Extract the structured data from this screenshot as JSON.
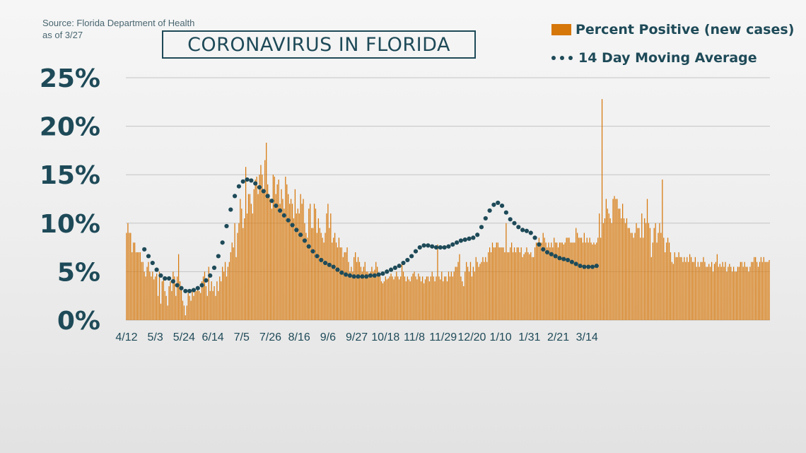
{
  "source_line1": "Source: Florida Department of Health",
  "source_line2": "as of 3/27",
  "title": "CORONAVIRUS IN FLORIDA",
  "legend": {
    "bars_label": "Percent Positive (new cases)",
    "line_label": "14 Day Moving Average"
  },
  "colors": {
    "bar": "#d6770a",
    "moving_average": "#1e4a58",
    "text": "#1e4a58",
    "grid": "#c4c4c4"
  },
  "chart_data": {
    "type": "bar",
    "title": "CORONAVIRUS IN FLORIDA",
    "xlabel": "",
    "ylabel": "",
    "ylim": [
      0,
      25
    ],
    "yticks": [
      0,
      5,
      10,
      15,
      20,
      25
    ],
    "ytick_labels": [
      "0%",
      "5%",
      "10%",
      "15%",
      "20%",
      "25%"
    ],
    "xticks": [
      "4/12",
      "5/3",
      "5/24",
      "6/14",
      "7/5",
      "7/26",
      "8/16",
      "9/6",
      "9/27",
      "10/18",
      "11/8",
      "11/29",
      "12/20",
      "1/10",
      "1/31",
      "2/21",
      "3/14"
    ],
    "grid": true,
    "legend_position": "top-right",
    "series": [
      {
        "name": "Percent Positive (new cases)",
        "type": "bar",
        "start": "4/12",
        "values": [
          9.0,
          10.0,
          9.0,
          9.0,
          7.0,
          8.0,
          8.0,
          7.0,
          7.0,
          7.0,
          7.0,
          6.0,
          6.0,
          5.0,
          4.5,
          5.5,
          6.0,
          5.0,
          4.5,
          5.0,
          4.2,
          4.5,
          4.8,
          2.5,
          5.0,
          1.7,
          4.0,
          4.2,
          3.0,
          2.5,
          1.5,
          3.5,
          4.0,
          3.0,
          5.0,
          4.5,
          2.5,
          4.5,
          6.8,
          4.0,
          3.2,
          2.0,
          1.5,
          0.5,
          1.5,
          2.8,
          2.5,
          2.0,
          3.0,
          2.5,
          3.0,
          3.0,
          3.5,
          3.0,
          2.8,
          4.0,
          4.5,
          5.0,
          3.5,
          2.5,
          5.5,
          3.0,
          4.0,
          3.0,
          3.5,
          2.5,
          4.0,
          3.0,
          4.5,
          4.0,
          5.5,
          5.0,
          6.0,
          4.5,
          5.5,
          6.0,
          7.0,
          8.0,
          7.5,
          10.0,
          6.5,
          9.0,
          10.0,
          12.5,
          11.5,
          9.5,
          10.5,
          15.8,
          11.0,
          13.0,
          13.0,
          12.0,
          11.0,
          13.5,
          14.5,
          14.8,
          13.0,
          15.0,
          16.0,
          15.0,
          13.5,
          16.5,
          18.3,
          14.0,
          13.0,
          12.5,
          11.5,
          15.0,
          14.8,
          13.0,
          14.0,
          14.5,
          12.0,
          13.5,
          12.5,
          11.5,
          14.8,
          14.0,
          13.0,
          12.0,
          12.5,
          12.0,
          10.5,
          13.5,
          11.0,
          11.5,
          11.0,
          13.0,
          12.0,
          12.5,
          10.0,
          9.0,
          8.5,
          11.5,
          12.0,
          9.5,
          9.5,
          12.0,
          11.5,
          9.0,
          10.5,
          9.5,
          9.0,
          8.5,
          8.0,
          9.0,
          11.0,
          12.0,
          9.5,
          11.0,
          8.0,
          8.5,
          9.0,
          8.0,
          7.5,
          8.5,
          7.5,
          7.5,
          6.5,
          7.0,
          7.0,
          7.5,
          6.0,
          5.0,
          5.5,
          5.0,
          6.5,
          7.0,
          6.0,
          6.5,
          6.0,
          5.5,
          5.0,
          5.5,
          6.0,
          5.0,
          5.0,
          4.8,
          5.0,
          5.5,
          5.0,
          5.2,
          6.0,
          5.5,
          4.5,
          4.5,
          4.0,
          3.8,
          4.0,
          4.5,
          4.2,
          4.3,
          4.5,
          4.8,
          4.5,
          4.2,
          4.5,
          5.0,
          4.5,
          4.2,
          4.5,
          5.8,
          5.0,
          4.5,
          4.0,
          4.5,
          4.2,
          4.0,
          4.5,
          4.8,
          5.0,
          4.5,
          4.2,
          4.8,
          4.5,
          4.0,
          4.5,
          3.8,
          4.2,
          4.5,
          4.5,
          4.0,
          4.5,
          5.0,
          4.5,
          4.0,
          4.5,
          7.8,
          4.5,
          4.2,
          5.0,
          4.0,
          4.5,
          4.5,
          4.0,
          5.0,
          4.5,
          5.0,
          4.5,
          5.0,
          5.5,
          5.5,
          6.0,
          6.8,
          4.5,
          4.0,
          3.5,
          5.0,
          6.0,
          5.5,
          5.0,
          6.0,
          4.5,
          5.5,
          5.0,
          6.5,
          6.0,
          5.5,
          5.8,
          6.0,
          6.5,
          6.0,
          6.5,
          6.0,
          7.0,
          7.5,
          7.0,
          8.0,
          7.5,
          7.5,
          8.0,
          8.0,
          7.5,
          7.5,
          7.5,
          7.5,
          7.0,
          10.0,
          7.0,
          7.0,
          7.5,
          8.0,
          7.0,
          7.5,
          7.0,
          7.5,
          7.5,
          7.0,
          7.5,
          6.5,
          6.8,
          7.0,
          7.5,
          7.0,
          6.8,
          7.0,
          6.5,
          6.5,
          7.5,
          8.0,
          8.0,
          8.5,
          8.0,
          8.0,
          9.0,
          8.5,
          8.0,
          7.5,
          8.0,
          7.5,
          8.0,
          7.5,
          8.5,
          8.0,
          8.0,
          7.5,
          8.0,
          8.0,
          8.0,
          7.8,
          8.0,
          8.5,
          8.5,
          8.5,
          8.0,
          8.0,
          8.0,
          8.0,
          9.5,
          9.0,
          8.5,
          8.5,
          8.5,
          8.0,
          9.0,
          8.0,
          8.5,
          8.0,
          8.5,
          8.0,
          7.8,
          8.0,
          7.8,
          8.0,
          8.5,
          11.0,
          8.5,
          22.8,
          10.0,
          10.5,
          12.5,
          11.5,
          11.0,
          10.5,
          10.0,
          12.5,
          12.8,
          12.5,
          12.5,
          11.5,
          11.5,
          10.5,
          12.0,
          10.5,
          10.0,
          10.5,
          9.5,
          9.5,
          9.0,
          9.0,
          8.5,
          9.0,
          10.0,
          9.5,
          9.5,
          8.5,
          11.0,
          8.5,
          10.5,
          10.0,
          12.5,
          10.0,
          9.5,
          6.5,
          8.0,
          9.5,
          10.0,
          8.0,
          9.0,
          10.0,
          9.0,
          14.5,
          8.5,
          7.0,
          8.0,
          8.5,
          8.0,
          7.0,
          6.0,
          5.8,
          7.0,
          6.5,
          6.5,
          7.0,
          6.5,
          6.5,
          6.0,
          6.5,
          6.0,
          6.5,
          6.0,
          6.8,
          6.5,
          6.0,
          6.0,
          6.5,
          5.5,
          6.0,
          5.5,
          6.0,
          6.0,
          6.5,
          6.0,
          5.5,
          5.5,
          5.8,
          5.5,
          6.0,
          5.0,
          5.8,
          6.0,
          6.8,
          5.5,
          5.8,
          5.5,
          6.0,
          5.5,
          6.0,
          5.0,
          5.5,
          5.8,
          5.5,
          5.0,
          5.5,
          5.0,
          5.0,
          5.5,
          5.5,
          6.0,
          6.0,
          5.5,
          6.0,
          5.5,
          5.5,
          5.0,
          5.5,
          6.0,
          6.0,
          6.5,
          6.5,
          6.0,
          5.5,
          6.0,
          6.5,
          6.0,
          6.5,
          6.0,
          6.0,
          6.0,
          6.2
        ]
      },
      {
        "name": "14 Day Moving Average",
        "type": "line",
        "style": "dotted",
        "points": [
          {
            "x": "4/25",
            "y": 7.3
          },
          {
            "x": "4/28",
            "y": 6.6
          },
          {
            "x": "5/1",
            "y": 5.9
          },
          {
            "x": "5/4",
            "y": 5.2
          },
          {
            "x": "5/7",
            "y": 4.6
          },
          {
            "x": "5/10",
            "y": 4.3
          },
          {
            "x": "5/13",
            "y": 4.3
          },
          {
            "x": "5/16",
            "y": 4.0
          },
          {
            "x": "5/19",
            "y": 3.6
          },
          {
            "x": "5/22",
            "y": 3.3
          },
          {
            "x": "5/25",
            "y": 3.0
          },
          {
            "x": "5/28",
            "y": 3.0
          },
          {
            "x": "5/31",
            "y": 3.1
          },
          {
            "x": "6/3",
            "y": 3.3
          },
          {
            "x": "6/6",
            "y": 3.6
          },
          {
            "x": "6/9",
            "y": 4.1
          },
          {
            "x": "6/12",
            "y": 4.6
          },
          {
            "x": "6/15",
            "y": 5.4
          },
          {
            "x": "6/18",
            "y": 6.6
          },
          {
            "x": "6/21",
            "y": 8.0
          },
          {
            "x": "6/24",
            "y": 9.7
          },
          {
            "x": "6/27",
            "y": 11.4
          },
          {
            "x": "6/30",
            "y": 12.8
          },
          {
            "x": "7/3",
            "y": 13.8
          },
          {
            "x": "7/6",
            "y": 14.3
          },
          {
            "x": "7/9",
            "y": 14.5
          },
          {
            "x": "7/12",
            "y": 14.4
          },
          {
            "x": "7/15",
            "y": 14.1
          },
          {
            "x": "7/18",
            "y": 13.7
          },
          {
            "x": "7/21",
            "y": 13.3
          },
          {
            "x": "7/24",
            "y": 12.8
          },
          {
            "x": "7/27",
            "y": 12.3
          },
          {
            "x": "7/30",
            "y": 11.8
          },
          {
            "x": "8/2",
            "y": 11.3
          },
          {
            "x": "8/5",
            "y": 10.8
          },
          {
            "x": "8/8",
            "y": 10.3
          },
          {
            "x": "8/11",
            "y": 9.8
          },
          {
            "x": "8/14",
            "y": 9.3
          },
          {
            "x": "8/17",
            "y": 8.8
          },
          {
            "x": "8/20",
            "y": 8.2
          },
          {
            "x": "8/23",
            "y": 7.6
          },
          {
            "x": "8/26",
            "y": 7.1
          },
          {
            "x": "8/29",
            "y": 6.6
          },
          {
            "x": "9/1",
            "y": 6.2
          },
          {
            "x": "9/4",
            "y": 5.9
          },
          {
            "x": "9/7",
            "y": 5.7
          },
          {
            "x": "9/10",
            "y": 5.5
          },
          {
            "x": "9/13",
            "y": 5.2
          },
          {
            "x": "9/16",
            "y": 4.9
          },
          {
            "x": "9/19",
            "y": 4.7
          },
          {
            "x": "9/22",
            "y": 4.6
          },
          {
            "x": "9/25",
            "y": 4.5
          },
          {
            "x": "9/28",
            "y": 4.5
          },
          {
            "x": "10/1",
            "y": 4.5
          },
          {
            "x": "10/4",
            "y": 4.5
          },
          {
            "x": "10/7",
            "y": 4.6
          },
          {
            "x": "10/10",
            "y": 4.6
          },
          {
            "x": "10/13",
            "y": 4.7
          },
          {
            "x": "10/16",
            "y": 4.8
          },
          {
            "x": "10/19",
            "y": 5.0
          },
          {
            "x": "10/22",
            "y": 5.2
          },
          {
            "x": "10/25",
            "y": 5.4
          },
          {
            "x": "10/28",
            "y": 5.6
          },
          {
            "x": "10/31",
            "y": 5.9
          },
          {
            "x": "11/3",
            "y": 6.2
          },
          {
            "x": "11/6",
            "y": 6.6
          },
          {
            "x": "11/9",
            "y": 7.1
          },
          {
            "x": "11/12",
            "y": 7.5
          },
          {
            "x": "11/15",
            "y": 7.7
          },
          {
            "x": "11/18",
            "y": 7.7
          },
          {
            "x": "11/21",
            "y": 7.6
          },
          {
            "x": "11/24",
            "y": 7.5
          },
          {
            "x": "11/27",
            "y": 7.5
          },
          {
            "x": "11/30",
            "y": 7.5
          },
          {
            "x": "12/3",
            "y": 7.6
          },
          {
            "x": "12/6",
            "y": 7.8
          },
          {
            "x": "12/9",
            "y": 8.0
          },
          {
            "x": "12/12",
            "y": 8.2
          },
          {
            "x": "12/15",
            "y": 8.3
          },
          {
            "x": "12/18",
            "y": 8.4
          },
          {
            "x": "12/21",
            "y": 8.5
          },
          {
            "x": "12/24",
            "y": 8.8
          },
          {
            "x": "12/27",
            "y": 9.6
          },
          {
            "x": "12/30",
            "y": 10.5
          },
          {
            "x": "1/2",
            "y": 11.3
          },
          {
            "x": "1/5",
            "y": 11.9
          },
          {
            "x": "1/8",
            "y": 12.1
          },
          {
            "x": "1/11",
            "y": 11.8
          },
          {
            "x": "1/14",
            "y": 11.1
          },
          {
            "x": "1/17",
            "y": 10.4
          },
          {
            "x": "1/20",
            "y": 10.0
          },
          {
            "x": "1/23",
            "y": 9.6
          },
          {
            "x": "1/26",
            "y": 9.3
          },
          {
            "x": "1/29",
            "y": 9.2
          },
          {
            "x": "2/1",
            "y": 9.0
          },
          {
            "x": "2/4",
            "y": 8.5
          },
          {
            "x": "2/7",
            "y": 7.8
          },
          {
            "x": "2/10",
            "y": 7.3
          },
          {
            "x": "2/13",
            "y": 7.0
          },
          {
            "x": "2/16",
            "y": 6.8
          },
          {
            "x": "2/19",
            "y": 6.6
          },
          {
            "x": "2/22",
            "y": 6.4
          },
          {
            "x": "2/25",
            "y": 6.3
          },
          {
            "x": "2/28",
            "y": 6.2
          },
          {
            "x": "3/3",
            "y": 6.0
          },
          {
            "x": "3/6",
            "y": 5.8
          },
          {
            "x": "3/9",
            "y": 5.6
          },
          {
            "x": "3/12",
            "y": 5.5
          },
          {
            "x": "3/15",
            "y": 5.5
          },
          {
            "x": "3/18",
            "y": 5.5
          },
          {
            "x": "3/21",
            "y": 5.6
          }
        ]
      }
    ]
  }
}
